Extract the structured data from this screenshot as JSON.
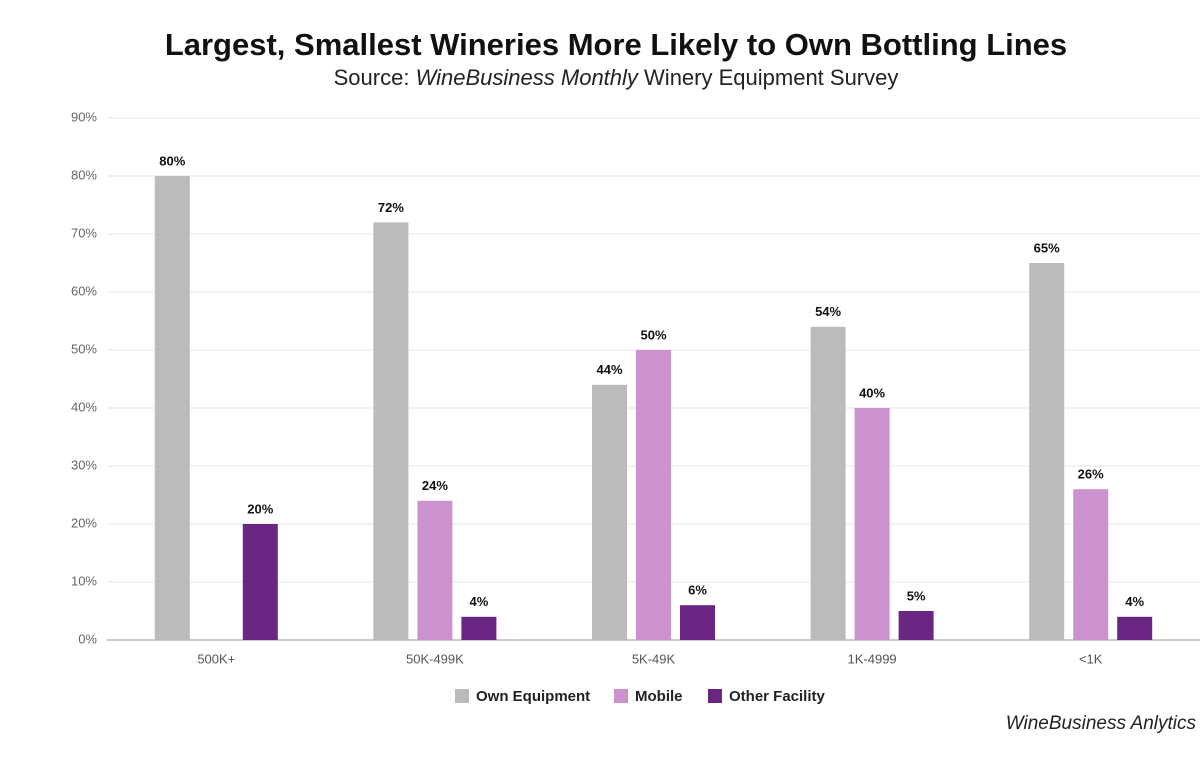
{
  "chart_data": {
    "type": "bar",
    "title": "Largest, Smallest Wineries More Likely to Own Bottling Lines",
    "subtitle": [
      "Source:",
      "WineBusiness Monthly",
      "Winery Equipment Survey"
    ],
    "footer": "WineBusiness Anlytics",
    "categories": [
      "500K+",
      "50K-499K",
      "5K-49K",
      "1K-4999",
      "<1K"
    ],
    "series": [
      {
        "name": "Own Equipment",
        "color": "#bbbbbb",
        "values": [
          80,
          72,
          44,
          54,
          65
        ],
        "value_labels": [
          "80%",
          "72%",
          "44%",
          "54%",
          "65%"
        ]
      },
      {
        "name": "Mobile",
        "color": "#cc92cf",
        "values": [
          null,
          24,
          50,
          40,
          26
        ],
        "value_labels": [
          null,
          "24%",
          "50%",
          "40%",
          "26%"
        ]
      },
      {
        "name": "Other Facility",
        "color": "#6a2683",
        "values": [
          20,
          4,
          6,
          5,
          4
        ],
        "value_labels": [
          "20%",
          "4%",
          "6%",
          "5%",
          "4%"
        ]
      }
    ],
    "ylim": [
      0,
      90
    ],
    "yticks": [
      {
        "value": 0,
        "label": "0%"
      },
      {
        "value": 10,
        "label": "10%"
      },
      {
        "value": 20,
        "label": "20%"
      },
      {
        "value": 30,
        "label": "30%"
      },
      {
        "value": 40,
        "label": "40%"
      },
      {
        "value": 50,
        "label": "50%"
      },
      {
        "value": 60,
        "label": "60%"
      },
      {
        "value": 70,
        "label": "70%"
      },
      {
        "value": 80,
        "label": "80%"
      },
      {
        "value": 90,
        "label": "90%"
      }
    ],
    "grid": true,
    "legend": "bottom"
  }
}
